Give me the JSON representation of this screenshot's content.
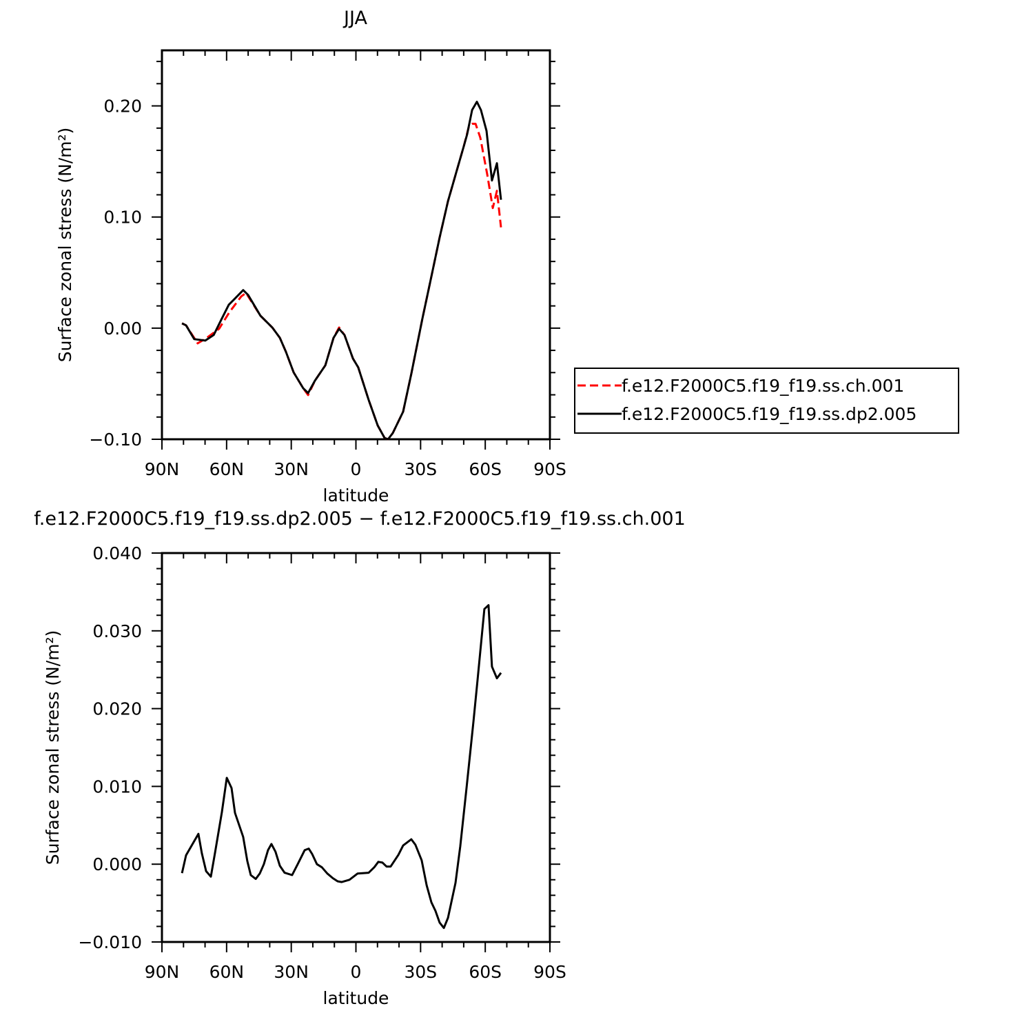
{
  "chart_data": [
    {
      "type": "line",
      "title": "JJA",
      "xlabel": "latitude",
      "ylabel": "Surface zonal stress (N/m²)",
      "xlim": [
        90,
        -90
      ],
      "ylim": [
        -0.1,
        0.25
      ],
      "xticks": [
        {
          "v": 90,
          "label": "90N"
        },
        {
          "v": 60,
          "label": "60N"
        },
        {
          "v": 30,
          "label": "30N"
        },
        {
          "v": 0,
          "label": "0"
        },
        {
          "v": -30,
          "label": "30S"
        },
        {
          "v": -60,
          "label": "60S"
        },
        {
          "v": -90,
          "label": "90S"
        }
      ],
      "yticks": [
        {
          "v": -0.1,
          "label": "−0.10"
        },
        {
          "v": 0.0,
          "label": "0.00"
        },
        {
          "v": 0.1,
          "label": "0.10"
        },
        {
          "v": 0.2,
          "label": "0.20"
        }
      ],
      "x_minor_step": 10,
      "y_minor_step": 0.02,
      "legend_placement": "right",
      "series": [
        {
          "name": "f.e12.F2000C5.f19_f19.ss.ch.001",
          "color": "#ff0000",
          "dash": true,
          "lat": [
            80.7,
            78.8,
            73.4,
            69.2,
            63.5,
            58.7,
            53.2,
            51.0,
            44.3,
            38.8,
            35.3,
            32.5,
            28.9,
            24.5,
            22.2,
            19.0,
            14.2,
            10.4,
            7.8,
            5.3,
            1.4,
            -1.1,
            -5.9,
            -10.1,
            -13.3,
            -14.9,
            -17.1,
            -21.9,
            -25.7,
            -30.8,
            -35.3,
            -38.8,
            -42.7,
            -46.5,
            -50.0,
            -52.3,
            -53.9,
            -55.5,
            -57.7,
            -60.9,
            -63.5,
            -65.4,
            -67.3
          ],
          "values": [
            0.0043,
            0.0025,
            -0.0137,
            -0.0087,
            -0.0006,
            0.0143,
            0.0286,
            0.0317,
            0.0112,
            0.0006,
            -0.0087,
            -0.0211,
            -0.0398,
            -0.054,
            -0.0602,
            -0.0472,
            -0.0335,
            -0.0087,
            0.0006,
            -0.0062,
            -0.0273,
            -0.0354,
            -0.0646,
            -0.0876,
            -0.0988,
            -0.1,
            -0.0944,
            -0.0752,
            -0.041,
            0.0081,
            0.0491,
            0.0814,
            0.1143,
            0.1398,
            0.1634,
            0.1807,
            0.1839,
            0.1839,
            0.1714,
            0.1385,
            0.1081,
            0.1236,
            0.0907
          ]
        },
        {
          "name": "f.e12.F2000C5.f19_f19.ss.dp2.005",
          "color": "#000000",
          "dash": false,
          "lat": [
            80.7,
            78.8,
            75.0,
            69.9,
            66.0,
            62.2,
            59.0,
            56.4,
            52.3,
            50.0,
            44.3,
            38.8,
            35.3,
            32.5,
            28.9,
            24.5,
            22.2,
            19.0,
            14.2,
            10.4,
            7.8,
            5.3,
            1.4,
            -1.1,
            -5.9,
            -10.1,
            -13.3,
            -14.9,
            -17.1,
            -21.9,
            -25.7,
            -30.8,
            -35.3,
            -38.8,
            -42.7,
            -46.5,
            -50.0,
            -51.6,
            -53.9,
            -56.1,
            -58.0,
            -60.6,
            -63.1,
            -65.4,
            -67.3
          ],
          "values": [
            0.0043,
            0.0025,
            -0.0099,
            -0.0112,
            -0.0062,
            0.0087,
            0.0211,
            0.0261,
            0.0342,
            0.0298,
            0.0112,
            0.0006,
            -0.0087,
            -0.0211,
            -0.0398,
            -0.054,
            -0.0584,
            -0.0472,
            -0.0335,
            -0.0087,
            -0.0006,
            -0.0062,
            -0.0273,
            -0.0354,
            -0.0646,
            -0.0876,
            -0.0988,
            -0.1,
            -0.0944,
            -0.0752,
            -0.041,
            0.0081,
            0.0491,
            0.0814,
            0.1143,
            0.1398,
            0.1634,
            0.1745,
            0.1963,
            0.2037,
            0.1963,
            0.1776,
            0.1329,
            0.1484,
            0.1155
          ]
        }
      ]
    },
    {
      "type": "line",
      "title": "f.e12.F2000C5.f19_f19.ss.dp2.005 − f.e12.F2000C5.f19_f19.ss.ch.001",
      "xlabel": "latitude",
      "ylabel": "Surface zonal stress (N/m²)",
      "xlim": [
        90,
        -90
      ],
      "ylim": [
        -0.01,
        0.04
      ],
      "xticks": [
        {
          "v": 90,
          "label": "90N"
        },
        {
          "v": 60,
          "label": "60N"
        },
        {
          "v": 30,
          "label": "30N"
        },
        {
          "v": 0,
          "label": "0"
        },
        {
          "v": -30,
          "label": "30S"
        },
        {
          "v": -60,
          "label": "60S"
        },
        {
          "v": -90,
          "label": "90S"
        }
      ],
      "yticks": [
        {
          "v": -0.01,
          "label": "−0.010"
        },
        {
          "v": 0.0,
          "label": "0.000"
        },
        {
          "v": 0.01,
          "label": "0.010"
        },
        {
          "v": 0.02,
          "label": "0.020"
        },
        {
          "v": 0.03,
          "label": "0.030"
        },
        {
          "v": 0.04,
          "label": "0.040"
        }
      ],
      "x_minor_step": 10,
      "y_minor_step": 0.002,
      "series": [
        {
          "name": "difference",
          "color": "#000000",
          "dash": false,
          "lat": [
            80.7,
            78.8,
            73.1,
            71.5,
            69.5,
            67.3,
            65.4,
            62.2,
            59.9,
            57.7,
            56.1,
            52.3,
            50.4,
            48.8,
            46.5,
            44.6,
            42.7,
            40.8,
            39.2,
            37.3,
            35.3,
            33.1,
            29.6,
            27.0,
            23.8,
            21.9,
            20.3,
            18.1,
            15.8,
            13.3,
            10.7,
            8.5,
            6.6,
            3.0,
            -0.8,
            -5.9,
            -8.5,
            -10.4,
            -12.3,
            -14.2,
            -16.1,
            -19.7,
            -21.9,
            -25.7,
            -27.6,
            -30.5,
            -32.8,
            -35.0,
            -36.9,
            -38.8,
            -40.8,
            -42.7,
            -46.2,
            -48.4,
            -51.3,
            -54.5,
            -56.4,
            -59.6,
            -61.5,
            -63.1,
            -65.4,
            -67.3
          ],
          "values": [
            -0.00115,
            0.00115,
            0.0039,
            0.0014,
            -0.0009,
            -0.0016,
            0.0014,
            0.0067,
            0.0111,
            0.0098,
            0.0066,
            0.0035,
            0.0004,
            -0.0014,
            -0.0019,
            -0.0012,
            0.0,
            0.0018,
            0.0026,
            0.0016,
            -0.0002,
            -0.0011,
            -0.0014,
            0.0,
            0.0018,
            0.002,
            0.0013,
            0.0,
            -0.0004,
            -0.0012,
            -0.0018,
            -0.0022,
            -0.0023,
            -0.002,
            -0.0012,
            -0.0011,
            -0.0004,
            0.0003,
            0.0002,
            -0.0003,
            -0.0003,
            0.0012,
            0.0024,
            0.0032,
            0.0025,
            0.0005,
            -0.0027,
            -0.0049,
            -0.006,
            -0.0075,
            -0.0082,
            -0.0069,
            -0.0024,
            0.0023,
            0.0098,
            0.0183,
            0.0236,
            0.0328,
            0.0333,
            0.0254,
            0.0239,
            0.0246
          ]
        }
      ]
    }
  ]
}
